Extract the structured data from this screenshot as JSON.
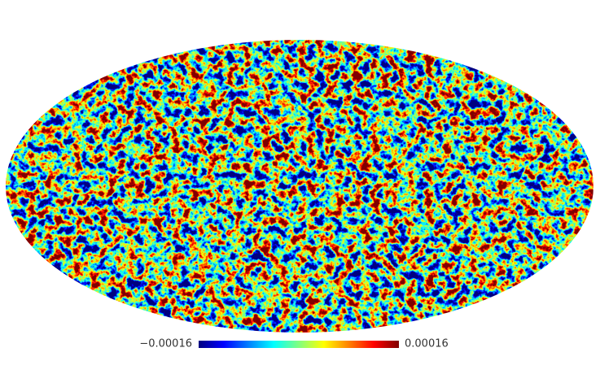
{
  "colorbar": {
    "min": {
      "value": -0.00016,
      "label": "−0.00016"
    },
    "max": 0.00016,
    "colormap": "jet"
  }
}
